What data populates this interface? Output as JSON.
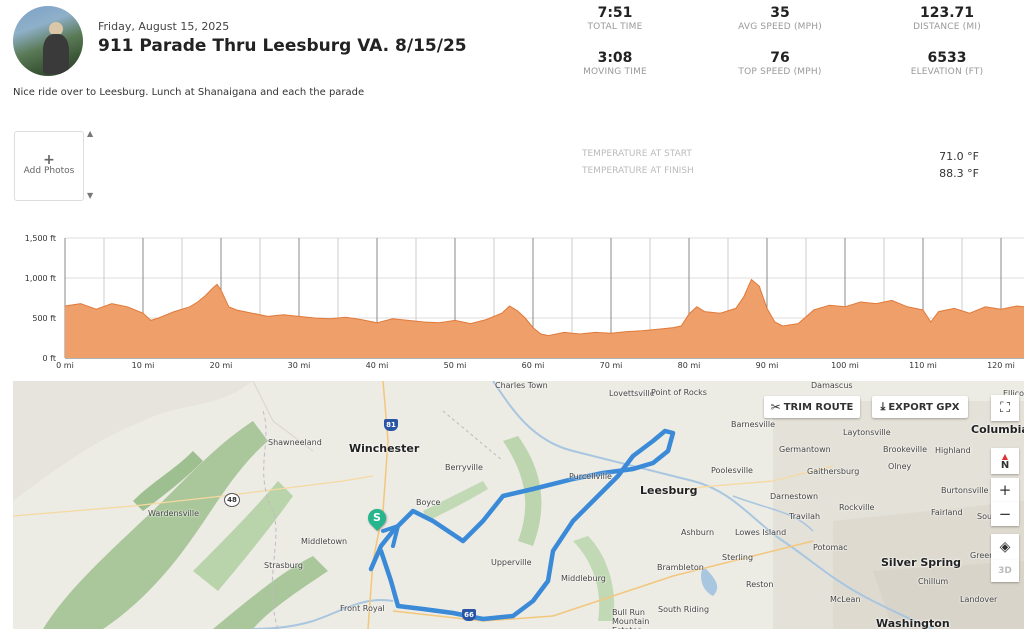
{
  "ride": {
    "date": "Friday, August 15, 2025",
    "title": "911 Parade Thru Leesburg VA. 8/15/25",
    "description": "Nice ride over to Leesburg. Lunch at Shanaigana and each the parade"
  },
  "stats": {
    "total_time": {
      "value": "7:51",
      "label": "TOTAL TIME"
    },
    "avg_speed": {
      "value": "35",
      "label": "AVG SPEED (MPH)"
    },
    "distance": {
      "value": "123.71",
      "label": "DISTANCE (MI)"
    },
    "moving_time": {
      "value": "3:08",
      "label": "MOVING TIME"
    },
    "top_speed": {
      "value": "76",
      "label": "TOP SPEED (MPH)"
    },
    "elevation": {
      "value": "6533",
      "label": "ELEVATION (FT)"
    }
  },
  "photos": {
    "add_label": "Add Photos",
    "plus": "+",
    "up": "▲",
    "down": "▼"
  },
  "temperature": {
    "start_label": "TEMPERATURE AT START",
    "start_value": "71.0 °F",
    "finish_label": "TEMPERATURE AT FINISH",
    "finish_value": "88.3 °F"
  },
  "chart_data": {
    "type": "area",
    "y_ticks": [
      "1,500 ft",
      "1,000 ft",
      "500 ft",
      "0 ft"
    ],
    "x_ticks": [
      "0 mi",
      "10 mi",
      "20 mi",
      "30 mi",
      "40 mi",
      "50 mi",
      "60 mi",
      "70 mi",
      "80 mi",
      "90 mi",
      "100 mi",
      "110 mi",
      "120 mi"
    ],
    "ylim": [
      0,
      1500
    ],
    "xlim": [
      0,
      123.71
    ],
    "fill_color": "#ef9f6a",
    "line_color": "#e07a3a",
    "x": [
      0,
      2,
      4,
      6,
      8,
      10,
      11,
      12,
      14,
      16,
      17,
      18,
      19,
      19.5,
      20,
      21,
      22,
      24,
      26,
      28,
      30,
      32,
      34,
      36,
      38,
      40,
      42,
      44,
      46,
      48,
      50,
      52,
      54,
      56,
      57,
      58,
      59,
      60,
      61,
      62,
      64,
      66,
      68,
      70,
      72,
      74,
      76,
      78,
      79,
      80,
      81,
      82,
      84,
      86,
      87,
      88,
      89,
      90,
      91,
      92,
      94,
      96,
      98,
      100,
      102,
      104,
      106,
      108,
      110,
      111,
      112,
      114,
      116,
      118,
      120,
      122,
      123.71
    ],
    "y": [
      650,
      680,
      610,
      680,
      640,
      560,
      470,
      500,
      580,
      640,
      700,
      780,
      880,
      920,
      850,
      640,
      600,
      560,
      520,
      540,
      520,
      500,
      490,
      510,
      480,
      440,
      490,
      470,
      450,
      440,
      470,
      430,
      480,
      560,
      650,
      590,
      500,
      380,
      300,
      280,
      320,
      300,
      320,
      310,
      330,
      340,
      360,
      380,
      400,
      550,
      640,
      580,
      560,
      620,
      760,
      980,
      900,
      620,
      450,
      400,
      430,
      600,
      660,
      640,
      700,
      680,
      720,
      640,
      600,
      450,
      580,
      620,
      560,
      640,
      610,
      650,
      640
    ]
  },
  "map": {
    "trim_route": "TRIM ROUTE",
    "export_gpx": "EXPORT GPX",
    "compass": "N",
    "zoom_in": "+",
    "zoom_out": "−",
    "mode_3d": "3D",
    "start_marker": "S",
    "route_color": "#3a8ad8",
    "interstates": [
      "81",
      "48",
      "66"
    ],
    "places": [
      {
        "name": "Charles Town",
        "bold": false
      },
      {
        "name": "Lovettsville",
        "bold": false
      },
      {
        "name": "Point of Rocks",
        "bold": false
      },
      {
        "name": "Damascus",
        "bold": false
      },
      {
        "name": "Columbia",
        "bold": true
      },
      {
        "name": "Shawneeland",
        "bold": false
      },
      {
        "name": "Winchester",
        "bold": true
      },
      {
        "name": "Berryville",
        "bold": false
      },
      {
        "name": "Barnesville",
        "bold": false
      },
      {
        "name": "Laytonsville",
        "bold": false
      },
      {
        "name": "Germantown",
        "bold": false
      },
      {
        "name": "Brookeville",
        "bold": false
      },
      {
        "name": "Highland",
        "bold": false
      },
      {
        "name": "Olney",
        "bold": false
      },
      {
        "name": "Purcellville",
        "bold": false
      },
      {
        "name": "Leesburg",
        "bold": true
      },
      {
        "name": "Poolesville",
        "bold": false
      },
      {
        "name": "Gaithersburg",
        "bold": false
      },
      {
        "name": "Burtonsville",
        "bold": false
      },
      {
        "name": "Wardensville",
        "bold": false
      },
      {
        "name": "Boyce",
        "bold": false
      },
      {
        "name": "Darnestown",
        "bold": false
      },
      {
        "name": "Rockville",
        "bold": false
      },
      {
        "name": "Fairland",
        "bold": false
      },
      {
        "name": "Travilah",
        "bold": false
      },
      {
        "name": "Middletown",
        "bold": false
      },
      {
        "name": "Ashburn",
        "bold": false
      },
      {
        "name": "Lowes Island",
        "bold": false
      },
      {
        "name": "Potomac",
        "bold": false
      },
      {
        "name": "Strasburg",
        "bold": false
      },
      {
        "name": "Upperville",
        "bold": false
      },
      {
        "name": "Sterling",
        "bold": false
      },
      {
        "name": "Brambleton",
        "bold": false
      },
      {
        "name": "Silver Spring",
        "bold": true
      },
      {
        "name": "Chillum",
        "bold": false
      },
      {
        "name": "Middleburg",
        "bold": false
      },
      {
        "name": "Reston",
        "bold": false
      },
      {
        "name": "Front Royal",
        "bold": false
      },
      {
        "name": "Bull Run Mountain Estates",
        "bold": false
      },
      {
        "name": "South Riding",
        "bold": false
      },
      {
        "name": "McLean",
        "bold": false
      },
      {
        "name": "Landover",
        "bold": false
      },
      {
        "name": "Washington",
        "bold": true
      },
      {
        "name": "Green",
        "bold": false
      },
      {
        "name": "Sou",
        "bold": false
      },
      {
        "name": "Ellico",
        "bold": false
      }
    ]
  }
}
